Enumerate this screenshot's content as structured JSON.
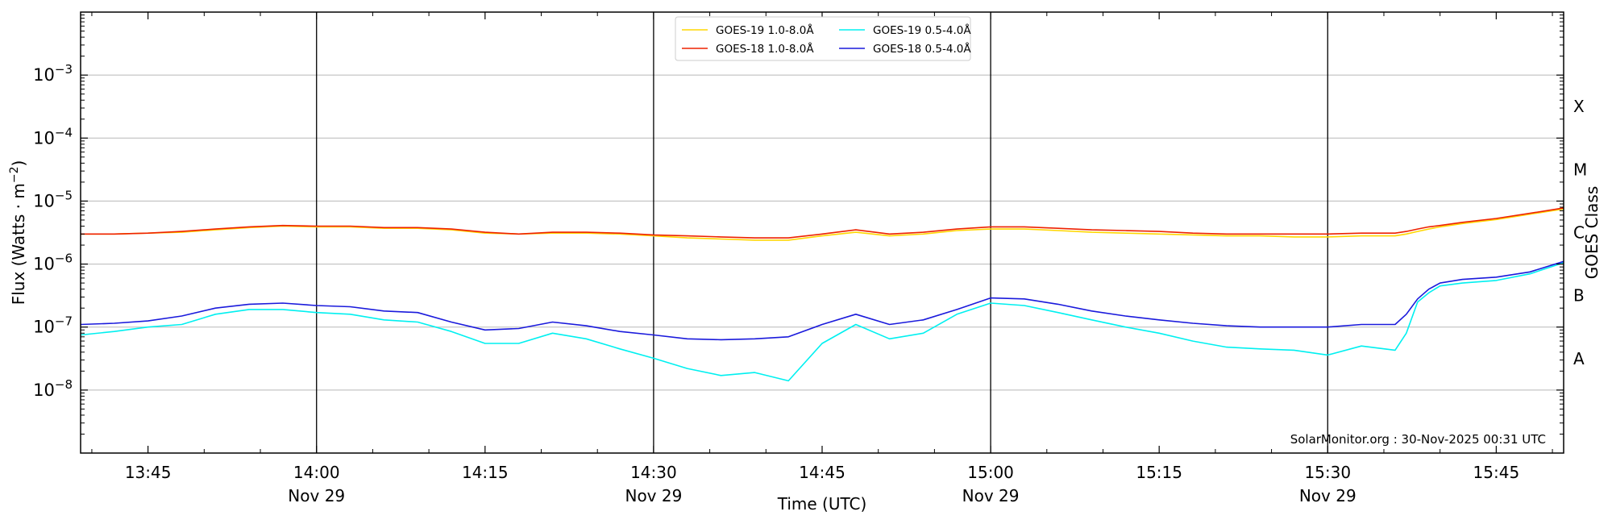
{
  "chart_data": {
    "type": "line",
    "title": "",
    "xlabel": "Time (UTC)",
    "ylabel": "Flux (Watts · m⁻²)",
    "ylabel_right": "GOES Class",
    "yscale": "log",
    "xlim": [
      "13:39",
      "15:51"
    ],
    "ylim": [
      1e-09,
      0.01
    ],
    "grid": "horizontal at major y ticks",
    "legend_position": "top-center",
    "credit": "SolarMonitor.org : 30-Nov-2025 00:31 UTC",
    "x_ticks": [
      {
        "time": "13:45",
        "label": "13:45",
        "date": ""
      },
      {
        "time": "14:00",
        "label": "14:00",
        "date": "Nov 29"
      },
      {
        "time": "14:15",
        "label": "14:15",
        "date": ""
      },
      {
        "time": "14:30",
        "label": "14:30",
        "date": "Nov 29"
      },
      {
        "time": "14:45",
        "label": "14:45",
        "date": ""
      },
      {
        "time": "15:00",
        "label": "15:00",
        "date": "Nov 29"
      },
      {
        "time": "15:15",
        "label": "15:15",
        "date": ""
      },
      {
        "time": "15:30",
        "label": "15:30",
        "date": "Nov 29"
      },
      {
        "time": "15:45",
        "label": "15:45",
        "date": ""
      }
    ],
    "vertical_lines": [
      "14:00",
      "14:30",
      "15:00",
      "15:30"
    ],
    "y_ticks": [
      {
        "exp": -8,
        "label": "10",
        "sup": "−8"
      },
      {
        "exp": -7,
        "label": "10",
        "sup": "−7"
      },
      {
        "exp": -6,
        "label": "10",
        "sup": "−6"
      },
      {
        "exp": -5,
        "label": "10",
        "sup": "−5"
      },
      {
        "exp": -4,
        "label": "10",
        "sup": "−4"
      },
      {
        "exp": -3,
        "label": "10",
        "sup": "−3"
      }
    ],
    "goes_classes": [
      {
        "label": "A",
        "exp": -7.5
      },
      {
        "label": "B",
        "exp": -6.5
      },
      {
        "label": "C",
        "exp": -5.5
      },
      {
        "label": "M",
        "exp": -4.5
      },
      {
        "label": "X",
        "exp": -3.5
      }
    ],
    "x": [
      "13:39",
      "13:42",
      "13:45",
      "13:48",
      "13:51",
      "13:54",
      "13:57",
      "14:00",
      "14:03",
      "14:06",
      "14:09",
      "14:12",
      "14:15",
      "14:18",
      "14:21",
      "14:24",
      "14:27",
      "14:30",
      "14:33",
      "14:36",
      "14:39",
      "14:42",
      "14:45",
      "14:48",
      "14:51",
      "14:54",
      "14:57",
      "15:00",
      "15:03",
      "15:06",
      "15:09",
      "15:12",
      "15:15",
      "15:18",
      "15:21",
      "15:24",
      "15:27",
      "15:30",
      "15:33",
      "15:36",
      "15:37",
      "15:38",
      "15:39",
      "15:40",
      "15:42",
      "15:45",
      "15:48",
      "15:51"
    ],
    "series": [
      {
        "name": "GOES-19 1.0-8.0Å",
        "color": "#ffd700",
        "values": [
          3e-06,
          3e-06,
          3.1e-06,
          3.2e-06,
          3.5e-06,
          3.8e-06,
          4e-06,
          3.9e-06,
          3.9e-06,
          3.7e-06,
          3.7e-06,
          3.5e-06,
          3.1e-06,
          3e-06,
          3.1e-06,
          3.1e-06,
          3e-06,
          2.8e-06,
          2.6e-06,
          2.5e-06,
          2.4e-06,
          2.4e-06,
          2.8e-06,
          3.2e-06,
          2.8e-06,
          3e-06,
          3.4e-06,
          3.6e-06,
          3.6e-06,
          3.4e-06,
          3.2e-06,
          3.1e-06,
          3e-06,
          2.9e-06,
          2.8e-06,
          2.8e-06,
          2.7e-06,
          2.7e-06,
          2.8e-06,
          2.8e-06,
          3e-06,
          3.3e-06,
          3.6e-06,
          3.9e-06,
          4.4e-06,
          5.1e-06,
          6.2e-06,
          7.5e-06
        ]
      },
      {
        "name": "GOES-18 1.0-8.0Å",
        "color": "#ee2200",
        "values": [
          3e-06,
          3e-06,
          3.1e-06,
          3.3e-06,
          3.6e-06,
          3.9e-06,
          4.1e-06,
          4e-06,
          4e-06,
          3.8e-06,
          3.8e-06,
          3.6e-06,
          3.2e-06,
          3e-06,
          3.2e-06,
          3.2e-06,
          3.1e-06,
          2.9e-06,
          2.8e-06,
          2.7e-06,
          2.6e-06,
          2.6e-06,
          3e-06,
          3.5e-06,
          3e-06,
          3.2e-06,
          3.6e-06,
          3.9e-06,
          3.9e-06,
          3.7e-06,
          3.5e-06,
          3.4e-06,
          3.3e-06,
          3.1e-06,
          3e-06,
          3e-06,
          3e-06,
          3e-06,
          3.1e-06,
          3.1e-06,
          3.3e-06,
          3.6e-06,
          3.9e-06,
          4.1e-06,
          4.6e-06,
          5.3e-06,
          6.4e-06,
          7.8e-06
        ]
      },
      {
        "name": "GOES-19 0.5-4.0Å",
        "color": "#00f0f0",
        "values": [
          7.5e-08,
          8.5e-08,
          1e-07,
          1.1e-07,
          1.6e-07,
          1.9e-07,
          1.9e-07,
          1.7e-07,
          1.6e-07,
          1.3e-07,
          1.2e-07,
          8.5e-08,
          5.5e-08,
          5.5e-08,
          8e-08,
          6.5e-08,
          4.5e-08,
          3.2e-08,
          2.2e-08,
          1.7e-08,
          1.9e-08,
          1.4e-08,
          5.5e-08,
          1.1e-07,
          6.5e-08,
          8e-08,
          1.6e-07,
          2.4e-07,
          2.2e-07,
          1.7e-07,
          1.3e-07,
          1e-07,
          8e-08,
          6e-08,
          4.8e-08,
          4.5e-08,
          4.3e-08,
          3.6e-08,
          5e-08,
          4.3e-08,
          8e-08,
          2.5e-07,
          3.5e-07,
          4.5e-07,
          5e-07,
          5.5e-07,
          7e-07,
          1.05e-06
        ]
      },
      {
        "name": "GOES-18 0.5-4.0Å",
        "color": "#1a1adc",
        "values": [
          1.1e-07,
          1.15e-07,
          1.25e-07,
          1.5e-07,
          2e-07,
          2.3e-07,
          2.4e-07,
          2.2e-07,
          2.1e-07,
          1.8e-07,
          1.7e-07,
          1.2e-07,
          9e-08,
          9.5e-08,
          1.2e-07,
          1.05e-07,
          8.5e-08,
          7.5e-08,
          6.5e-08,
          6.3e-08,
          6.5e-08,
          7e-08,
          1.1e-07,
          1.6e-07,
          1.1e-07,
          1.3e-07,
          1.9e-07,
          2.9e-07,
          2.8e-07,
          2.3e-07,
          1.8e-07,
          1.5e-07,
          1.3e-07,
          1.15e-07,
          1.05e-07,
          1e-07,
          1e-07,
          1e-07,
          1.1e-07,
          1.1e-07,
          1.6e-07,
          2.8e-07,
          4e-07,
          5e-07,
          5.7e-07,
          6.2e-07,
          7.5e-07,
          1.1e-06
        ]
      }
    ]
  }
}
